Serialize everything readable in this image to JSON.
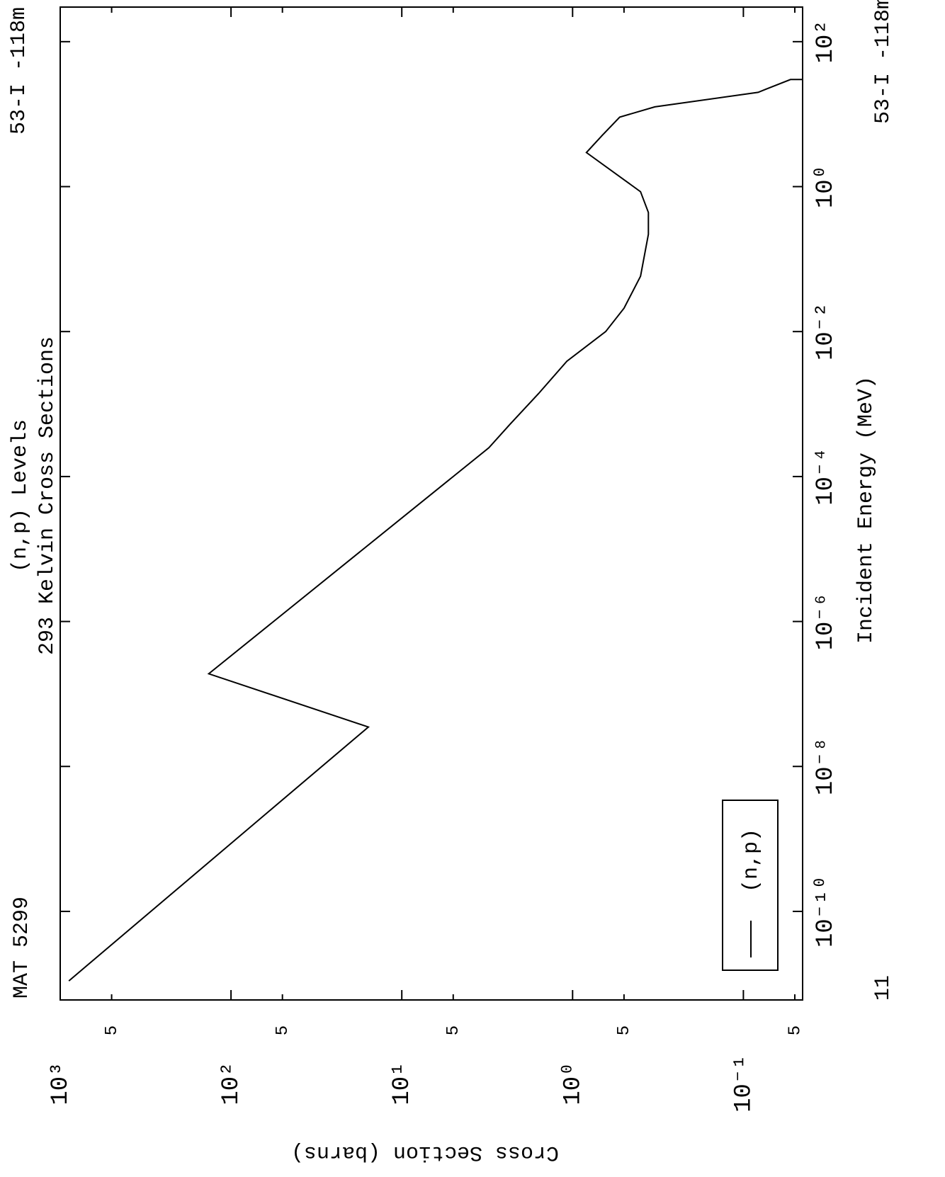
{
  "chart_data": {
    "type": "line",
    "title": "(n,p) Levels",
    "subtitle": "293 Kelvin Cross Sections",
    "x_label": "Incident Energy (MeV)",
    "y_label": "Cross Section (barns)",
    "annotations": [
      "MAT 5299",
      "53-I -118m",
      "53-I -118m",
      "11"
    ],
    "x_scale": "log",
    "y_scale": "log",
    "xlim": [
      6e-12,
      300
    ],
    "ylim": [
      1000,
      0.045
    ],
    "xticks": [
      {
        "value": 1e-10,
        "label": "10⁻¹⁰"
      },
      {
        "value": 1e-08,
        "label": "10⁻⁸"
      },
      {
        "value": 1e-06,
        "label": "10⁻⁶"
      },
      {
        "value": 0.0001,
        "label": "10⁻⁴"
      },
      {
        "value": 0.01,
        "label": "10⁻²"
      },
      {
        "value": 1,
        "label": "10⁰"
      },
      {
        "value": 100,
        "label": "10²"
      }
    ],
    "yticks": [
      {
        "value": 1000,
        "label": "10³"
      },
      {
        "value": 500,
        "label": "5"
      },
      {
        "value": 100,
        "label": "10²"
      },
      {
        "value": 50,
        "label": "5"
      },
      {
        "value": 10,
        "label": "10¹"
      },
      {
        "value": 5,
        "label": "5"
      },
      {
        "value": 1,
        "label": "10⁰"
      },
      {
        "value": 0.5,
        "label": "5"
      },
      {
        "value": 0.1,
        "label": "10⁻¹"
      },
      {
        "value": 0.05,
        "label": "5"
      }
    ],
    "legend": "lower left",
    "series": [
      {
        "name": "(n,p)",
        "color": "#000000",
        "x": [
          1.1e-11,
          3.5e-08,
          1.9e-07,
          0.00025,
          0.00053,
          0.0014,
          0.0039,
          0.01,
          0.021,
          0.058,
          0.22,
          0.44,
          0.85,
          2.95,
          5.1,
          9.1,
          12.6,
          20,
          22,
          30,
          30
        ],
        "values": [
          890,
          15.7,
          135,
          3.09,
          2.32,
          1.58,
          1.08,
          0.64,
          0.5,
          0.4,
          0.36,
          0.36,
          0.4,
          0.83,
          0.67,
          0.53,
          0.33,
          0.082,
          0.074,
          0.053,
          0.045
        ]
      }
    ]
  }
}
